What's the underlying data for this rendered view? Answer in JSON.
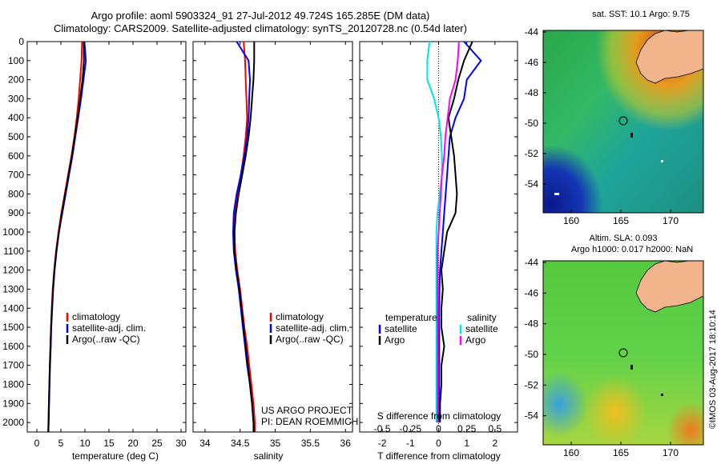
{
  "header": {
    "line1": "Argo profile: aoml 5903324_91 27-Jul-2012 49.724S 165.285E (DM data)",
    "line2": "Climatology: CARS2009. Satellite-adjusted climatology: synTS_20120728.nc (0.54d later)"
  },
  "colors": {
    "climatology": "#ff0000",
    "satellite": "#0000ff",
    "argo": "#000000",
    "sal_satellite": "#00e5e5",
    "sal_argo": "#ff00ff",
    "land": "#f2b48a"
  },
  "depth_axis": {
    "ticks": [
      "0",
      "100",
      "200",
      "300",
      "400",
      "500",
      "600",
      "700",
      "800",
      "900",
      "1000",
      "1100",
      "1200",
      "1300",
      "1400",
      "1500",
      "1600",
      "1700",
      "1800",
      "1900",
      "2000"
    ]
  },
  "panels": {
    "temperature": {
      "xlabel": "temperature (deg C)",
      "xticks": [
        "0",
        "5",
        "10",
        "15",
        "20",
        "25",
        "30"
      ],
      "legend": [
        "climatology",
        "satellite-adj. clim.",
        "Argo(..raw -QC)"
      ]
    },
    "salinity": {
      "xlabel": "salinity",
      "xticks": [
        "34",
        "34.5",
        "35",
        "35.5",
        "36"
      ],
      "legend": [
        "climatology",
        "satellite-adj. clim.",
        "Argo(..raw -QC)"
      ],
      "note1": "US ARGO PROJECT",
      "note2": "PI: DEAN ROEMMICH"
    },
    "difference": {
      "xlabel": "T difference from climatology",
      "top_label": "S difference from climatology",
      "xticks": [
        "-2",
        "-1",
        "0",
        "1",
        "2"
      ],
      "sticks": [
        "-0.5",
        "-0.25",
        "0",
        "0.25",
        "0.5"
      ],
      "legend_t_head": "temperature",
      "legend_s_head": "salinity",
      "legend_t": [
        "satellite",
        "Argo"
      ],
      "legend_s": [
        "satellite",
        "Argo"
      ]
    }
  },
  "maps": {
    "sst_title": "sat. SST: 10.1  Argo: 9.75",
    "sla_title1": "Altim. SLA: 0.093",
    "sla_title2": "Argo h1000: 0.017  h2000: NaN",
    "yticks": [
      "-44",
      "-46",
      "-48",
      "-50",
      "-52",
      "-54"
    ],
    "xticks": [
      "160",
      "165",
      "170"
    ],
    "stamp": "©IMOS 03-Aug-2017 18:10:14"
  },
  "chart_data": [
    {
      "type": "line",
      "title": "temperature",
      "xlabel": "temperature (deg C)",
      "ylabel": "",
      "xlim": [
        -2,
        31
      ],
      "ylim": [
        2050,
        0
      ],
      "series": [
        {
          "name": "climatology",
          "color": "#ff0000",
          "x": [
            9.4,
            9.3,
            9.0,
            8.7,
            8.3,
            7.8,
            7.2,
            6.5,
            5.8,
            5.1,
            4.5,
            4.0,
            3.6,
            3.3,
            3.1,
            2.95,
            2.8,
            2.7,
            2.6,
            2.5,
            2.4,
            2.35
          ],
          "y": [
            0,
            100,
            200,
            300,
            400,
            500,
            600,
            700,
            800,
            900,
            1000,
            1100,
            1200,
            1300,
            1400,
            1500,
            1600,
            1700,
            1800,
            1900,
            2000,
            2050
          ]
        },
        {
          "name": "satellite-adj. clim.",
          "color": "#0000ff",
          "x": [
            9.9,
            10.2,
            9.7,
            9.2,
            8.6,
            8.0,
            7.4,
            6.7,
            6.0,
            5.3,
            4.6,
            4.1,
            3.7,
            3.4,
            3.2,
            3.0,
            2.9,
            2.75,
            2.65,
            2.55,
            2.45,
            2.4
          ],
          "y": [
            0,
            100,
            200,
            300,
            400,
            500,
            600,
            700,
            800,
            900,
            1000,
            1100,
            1200,
            1300,
            1400,
            1500,
            1600,
            1700,
            1800,
            1900,
            2000,
            2050
          ]
        },
        {
          "name": "Argo(..raw -QC)",
          "color": "#000000",
          "x": [
            9.75,
            9.8,
            9.5,
            9.0,
            8.5,
            7.9,
            7.3,
            6.6,
            5.9,
            5.2,
            4.6,
            4.05,
            3.65,
            3.35,
            3.15,
            2.95,
            2.85,
            2.7,
            2.6,
            2.5,
            2.45,
            2.4
          ],
          "y": [
            0,
            100,
            200,
            300,
            400,
            500,
            600,
            700,
            800,
            900,
            1000,
            1100,
            1200,
            1300,
            1400,
            1500,
            1600,
            1700,
            1800,
            1900,
            2000,
            2050
          ]
        }
      ]
    },
    {
      "type": "line",
      "title": "salinity",
      "xlabel": "salinity",
      "ylabel": "",
      "xlim": [
        33.83,
        36.1
      ],
      "ylim": [
        2050,
        0
      ],
      "series": [
        {
          "name": "climatology",
          "color": "#ff0000",
          "x": [
            34.55,
            34.57,
            34.58,
            34.59,
            34.6,
            34.58,
            34.55,
            34.51,
            34.46,
            34.43,
            34.42,
            34.43,
            34.46,
            34.5,
            34.53,
            34.56,
            34.6,
            34.63,
            34.66,
            34.69,
            34.71,
            34.71
          ],
          "y": [
            0,
            100,
            200,
            300,
            400,
            500,
            600,
            700,
            800,
            900,
            1000,
            1100,
            1200,
            1300,
            1400,
            1500,
            1600,
            1700,
            1800,
            1900,
            2000,
            2050
          ]
        },
        {
          "name": "satellite-adj. clim.",
          "color": "#0000ff",
          "x": [
            34.45,
            34.62,
            34.64,
            34.63,
            34.62,
            34.6,
            34.56,
            34.51,
            34.45,
            34.41,
            34.4,
            34.41,
            34.44,
            34.48,
            34.51,
            34.54,
            34.57,
            34.6,
            34.64,
            34.67,
            34.69,
            34.69
          ],
          "y": [
            0,
            100,
            200,
            300,
            400,
            500,
            600,
            700,
            800,
            900,
            1000,
            1100,
            1200,
            1300,
            1400,
            1500,
            1600,
            1700,
            1800,
            1900,
            2000,
            2050
          ]
        },
        {
          "name": "Argo(..raw -QC)",
          "color": "#000000",
          "x": [
            34.7,
            34.7,
            34.69,
            34.67,
            34.65,
            34.62,
            34.58,
            34.53,
            34.48,
            34.44,
            34.42,
            34.42,
            34.45,
            34.49,
            34.52,
            34.55,
            34.58,
            34.61,
            34.64,
            34.67,
            34.69,
            34.7
          ],
          "y": [
            0,
            100,
            200,
            300,
            400,
            500,
            600,
            700,
            800,
            900,
            1000,
            1100,
            1200,
            1300,
            1400,
            1500,
            1600,
            1700,
            1800,
            1900,
            2000,
            2050
          ]
        }
      ]
    },
    {
      "type": "line",
      "title": "difference from climatology",
      "xlabel": "T difference from climatology",
      "ylabel": "",
      "xlim": [
        -2.8,
        2.8
      ],
      "ylim": [
        2050,
        0
      ],
      "series": [
        {
          "name": "temperature satellite",
          "color": "#0000ff",
          "x": [
            0.9,
            1.5,
            1.0,
            0.9,
            0.6,
            0.4,
            0.35,
            0.3,
            0.25,
            0.2,
            0.15,
            0.1,
            0.05,
            0.03,
            0.02,
            0.02,
            0.02,
            0.02,
            0.02,
            0.02,
            0.02
          ],
          "y": [
            0,
            100,
            200,
            300,
            400,
            500,
            600,
            700,
            800,
            900,
            1000,
            1100,
            1200,
            1300,
            1400,
            1500,
            1600,
            1700,
            1800,
            1900,
            2000
          ]
        },
        {
          "name": "temperature Argo",
          "color": "#000000",
          "x": [
            1.2,
            0.9,
            0.7,
            0.55,
            0.35,
            0.45,
            0.55,
            0.6,
            0.65,
            0.6,
            0.3,
            0.2,
            0.1,
            0.15,
            0.1,
            0.1,
            0.2,
            0.1,
            0.1,
            0.05,
            0.05
          ],
          "y": [
            0,
            100,
            200,
            300,
            400,
            500,
            600,
            700,
            800,
            900,
            1000,
            1100,
            1200,
            1300,
            1400,
            1500,
            1600,
            1700,
            1800,
            1900,
            2000
          ]
        },
        {
          "name": "salinity satellite",
          "color": "#00e5e5",
          "x": [
            -0.08,
            -0.1,
            -0.1,
            -0.04,
            0.0,
            0.02,
            0.03,
            0.03,
            0.01,
            -0.01,
            -0.02,
            -0.02,
            -0.02,
            -0.02,
            -0.02,
            -0.02,
            -0.02,
            -0.02,
            -0.02,
            -0.02,
            -0.02
          ],
          "y": [
            0,
            100,
            200,
            300,
            400,
            500,
            600,
            700,
            800,
            900,
            1000,
            1100,
            1200,
            1300,
            1400,
            1500,
            1600,
            1700,
            1800,
            1900,
            2000
          ]
        },
        {
          "name": "salinity Argo",
          "color": "#ff00ff",
          "x": [
            0.18,
            0.17,
            0.15,
            0.1,
            0.08,
            0.06,
            0.05,
            0.03,
            0.02,
            0.01,
            0.0,
            -0.01,
            -0.01,
            -0.01,
            -0.01,
            -0.01,
            -0.01,
            -0.01,
            -0.01,
            -0.01,
            -0.01
          ],
          "y": [
            0,
            100,
            200,
            300,
            400,
            500,
            600,
            700,
            800,
            900,
            1000,
            1100,
            1200,
            1300,
            1400,
            1500,
            1600,
            1700,
            1800,
            1900,
            2000
          ]
        }
      ]
    }
  ]
}
